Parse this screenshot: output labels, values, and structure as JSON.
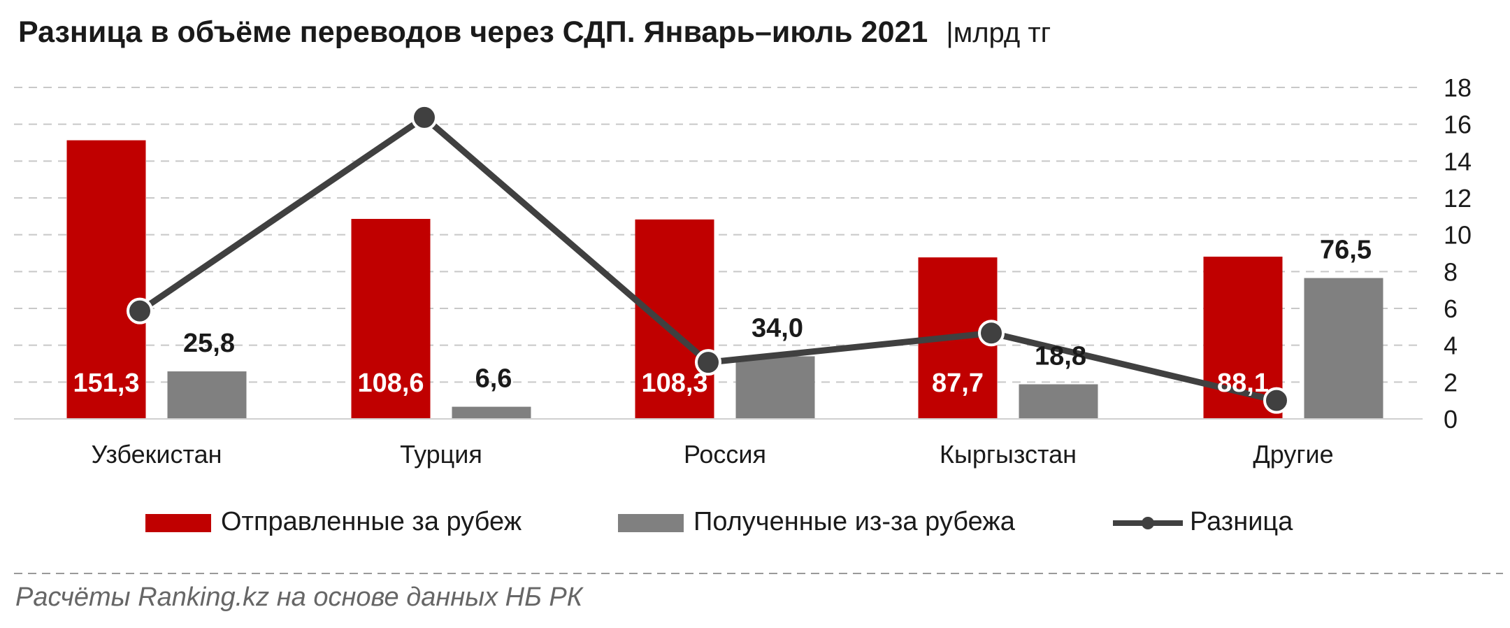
{
  "header": {
    "title": "Разница в объёме переводов через СДП. Январь–июль 2021",
    "unit": "|млрд тг"
  },
  "footer": {
    "source": "Расчёты Ranking.kz на основе данных НБ РК"
  },
  "colors": {
    "sent": "#c00000",
    "received": "#808080",
    "difference": "#404040",
    "grid": "#c8c8c8"
  },
  "chart_data": {
    "type": "bar",
    "categories": [
      "Узбекистан",
      "Турция",
      "Россия",
      "Кыргызстан",
      "Другие"
    ],
    "series": [
      {
        "name": "Отправленные за рубеж",
        "kind": "bar",
        "values": [
          151.3,
          108.6,
          108.3,
          87.7,
          88.1
        ],
        "labels": [
          "151,3",
          "108,6",
          "108,3",
          "87,7",
          "88,1"
        ]
      },
      {
        "name": "Полученные из-за рубежа",
        "kind": "bar",
        "values": [
          25.8,
          6.6,
          34.0,
          18.8,
          76.5
        ],
        "labels": [
          "25,8",
          "6,6",
          "34,0",
          "18,8",
          "76,5"
        ]
      },
      {
        "name": "Разница",
        "kind": "line",
        "axis": "right",
        "values": [
          5.86,
          16.37,
          3.07,
          4.66,
          1.0
        ]
      }
    ],
    "right_axis": {
      "ylim": [
        0,
        18
      ],
      "ticks": [
        "0",
        "2",
        "4",
        "6",
        "8",
        "10",
        "12",
        "14",
        "16",
        "18"
      ]
    },
    "bar_axis": {
      "ylim": [
        0,
        180
      ]
    },
    "grid": true,
    "legend_position": "bottom"
  }
}
